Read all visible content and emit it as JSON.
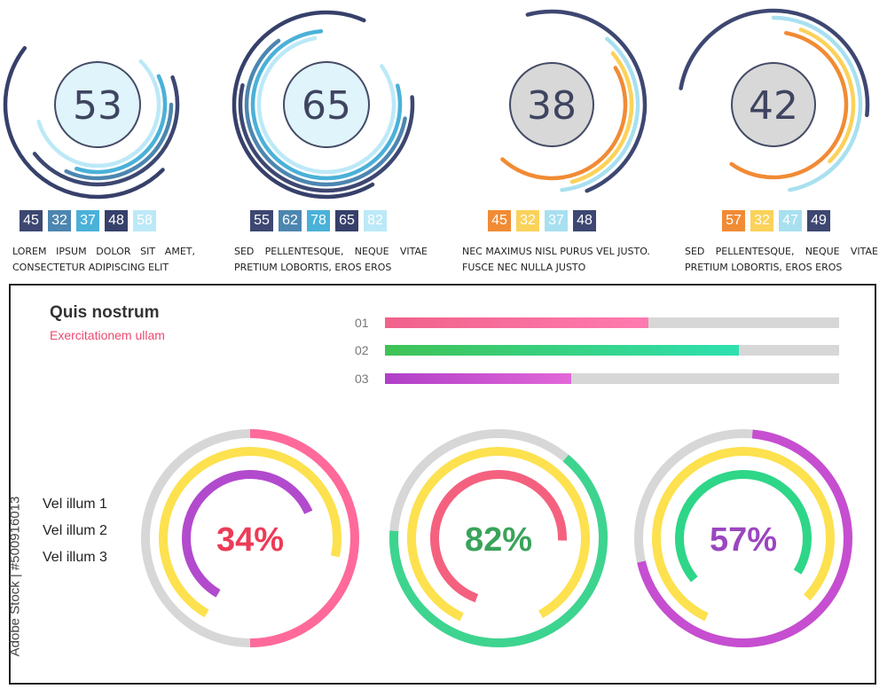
{
  "chart_data": [
    {
      "type": "radial-bar",
      "center_value": "53",
      "values": [
        45,
        32,
        37,
        48,
        58
      ],
      "colors": [
        "#3d4771",
        "#4c86b0",
        "#4ab1d8",
        "#36406a",
        "#bce9f7"
      ],
      "center_fill": "#dff4fb",
      "text": "LOREM IPSUM DOLOR SIT AMET, CONSECTETUR ADIPISCING ELIT"
    },
    {
      "type": "radial-bar",
      "center_value": "65",
      "values": [
        55,
        62,
        78,
        65,
        82
      ],
      "colors": [
        "#3d4771",
        "#4c86b0",
        "#4ab1d8",
        "#36406a",
        "#bce9f7"
      ],
      "center_fill": "#dff4fb",
      "text": "SED PELLENTESQUE, NEQUE VITAE PRETIUM LOBORTIS, EROS EROS"
    },
    {
      "type": "radial-bar",
      "center_value": "38",
      "values": [
        45,
        32,
        37,
        48
      ],
      "colors": [
        "#f18b34",
        "#fbd25a",
        "#a8e0f0",
        "#3d4771"
      ],
      "center_fill": "#d8d8d8",
      "text": "NEC MAXIMUS NISL PURUS VEL JUSTO. FUSCE NEC NULLA JUSTO"
    },
    {
      "type": "radial-bar",
      "center_value": "42",
      "values": [
        57,
        32,
        47,
        49
      ],
      "colors": [
        "#f18b34",
        "#fbd25a",
        "#a8e0f0",
        "#3d4771"
      ],
      "center_fill": "#d8d8d8",
      "text": "SED PELLENTESQUE, NEQUE VITAE PRETIUM LOBORTIS, EROS EROS"
    },
    {
      "type": "bar",
      "orientation": "horizontal",
      "categories": [
        "01",
        "02",
        "03"
      ],
      "values": [
        58,
        78,
        41
      ],
      "xlim": [
        0,
        100
      ],
      "colors": [
        [
          "#f0628a",
          "#ff7ab0"
        ],
        [
          "#3fc255",
          "#2fe0b0"
        ],
        [
          "#b03fc8",
          "#e268d8"
        ]
      ]
    },
    {
      "type": "donut",
      "percent_label": "34%",
      "percent_color": "#ec3b57",
      "rings": [
        {
          "value": 50,
          "color": "#ff6a9a"
        },
        {
          "value": 70,
          "color": "#fde14e"
        },
        {
          "value": 60,
          "color": "#b24acd"
        }
      ]
    },
    {
      "type": "donut",
      "percent_label": "82%",
      "percent_color": "#3aa35a",
      "rings": [
        {
          "value": 65,
          "color": "#3dd48f"
        },
        {
          "value": 85,
          "color": "#fde14e"
        },
        {
          "value": 70,
          "color": "#f4617f"
        }
      ]
    },
    {
      "type": "donut",
      "percent_label": "57%",
      "percent_color": "#9b46c0",
      "rings": [
        {
          "value": 70,
          "color": "#c64ed0"
        },
        {
          "value": 80,
          "color": "#fde14e"
        },
        {
          "value": 70,
          "color": "#2ed688"
        }
      ]
    }
  ],
  "panel": {
    "title": "Quis nostrum",
    "subtitle": "Exercitationem ullam",
    "side_labels": [
      "Vel illum 1",
      "Vel illum 2",
      "Vel illum 3"
    ]
  },
  "watermark": "Adobe Stock | #500916013"
}
